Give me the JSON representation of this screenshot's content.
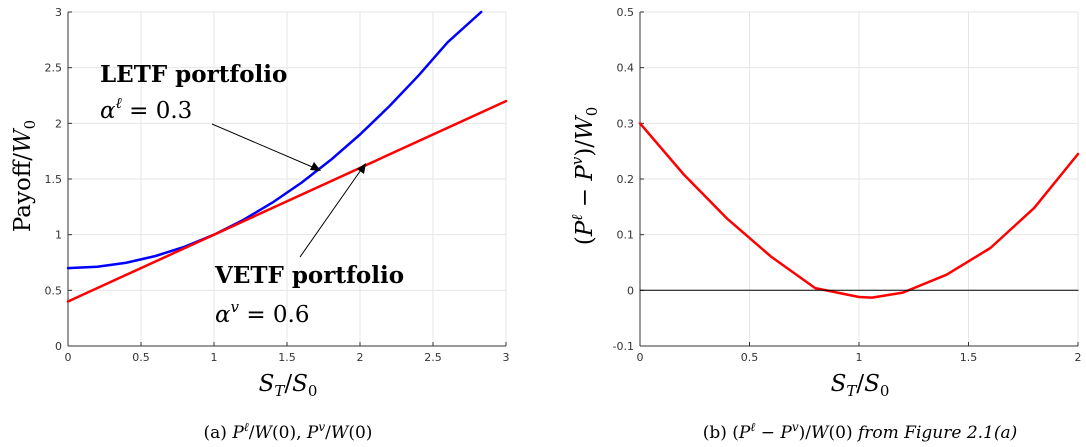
{
  "chart_data": [
    {
      "type": "line",
      "panel": "a",
      "caption": "(a) Pℓ/W(0), Pv/W(0)",
      "xlabel": "ST/S0",
      "ylabel": "Payoff/W0",
      "xlim": [
        0,
        3
      ],
      "ylim": [
        0,
        3
      ],
      "xticks": [
        "0",
        "0.5",
        "1",
        "1.5",
        "2",
        "2.5",
        "3"
      ],
      "yticks": [
        "0",
        "0.5",
        "1",
        "1.5",
        "2",
        "2.5",
        "3"
      ],
      "grid": true,
      "series": [
        {
          "color": "#0000ff",
          "x": [
            0,
            0.2,
            0.4,
            0.6,
            0.8,
            1.0,
            1.2,
            1.4,
            1.6,
            1.8,
            2.0,
            2.2,
            2.4,
            2.6,
            2.83
          ],
          "y": [
            0.7,
            0.712,
            0.748,
            0.808,
            0.892,
            1.0,
            1.132,
            1.288,
            1.468,
            1.672,
            1.9,
            2.152,
            2.428,
            2.728,
            3.0
          ]
        },
        {
          "color": "#ff0000",
          "x": [
            0,
            3
          ],
          "y": [
            0.4,
            2.2
          ]
        }
      ],
      "annotations": [
        {
          "title": "LETF portfolio",
          "math": "αℓ = 0.3"
        },
        {
          "title": "VETF portfolio",
          "math": "αv = 0.6"
        }
      ]
    },
    {
      "type": "line",
      "panel": "b",
      "caption": "(b) (Pℓ − Pv)/W(0)",
      "caption_italic": "from Figure 2.1(a)",
      "xlabel": "ST/S0",
      "ylabel": "(Pℓ − Pv)/W0",
      "xlim": [
        0,
        2
      ],
      "ylim": [
        -0.1,
        0.5
      ],
      "xticks": [
        "0",
        "0.5",
        "1",
        "1.5",
        "2"
      ],
      "yticks": [
        "-0.1",
        "0",
        "0.1",
        "0.2",
        "0.3",
        "0.4",
        "0.5"
      ],
      "grid": true,
      "series": [
        {
          "color": "#ff0000",
          "x": [
            0,
            0.2,
            0.4,
            0.6,
            0.8,
            1.0,
            1.06,
            1.2,
            1.4,
            1.6,
            1.8,
            2.0
          ],
          "y": [
            0.3,
            0.208,
            0.128,
            0.06,
            0.004,
            -0.012,
            -0.013,
            -0.004,
            0.028,
            0.076,
            0.148,
            0.245
          ]
        },
        {
          "color": "#000000",
          "x": [
            0,
            2
          ],
          "y": [
            0,
            0
          ]
        }
      ]
    }
  ]
}
